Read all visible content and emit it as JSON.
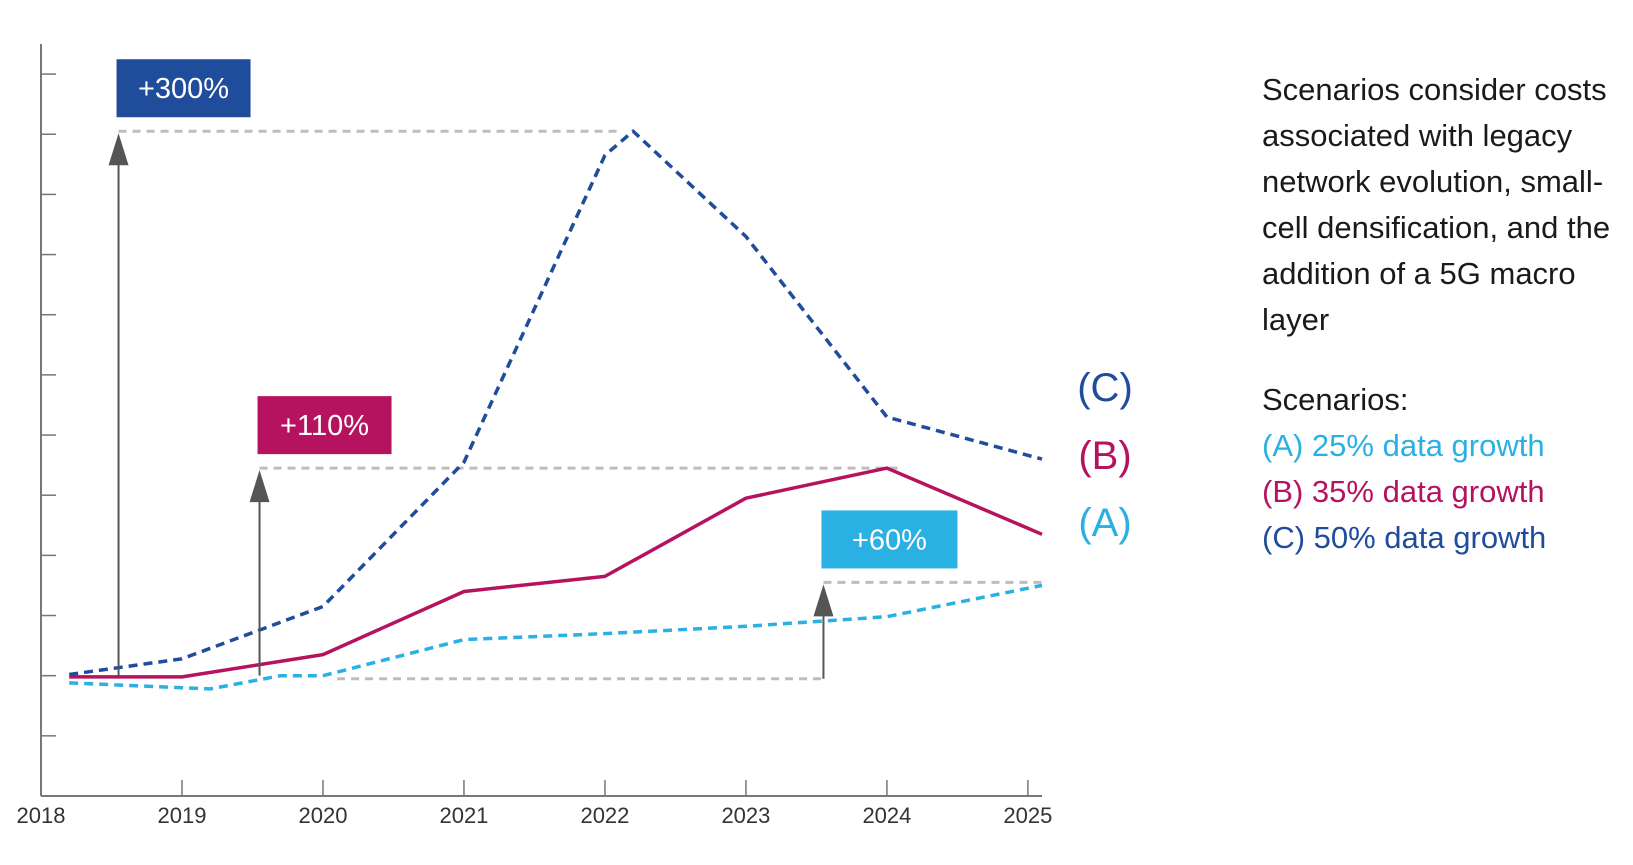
{
  "chart_data": {
    "type": "line",
    "x": [
      2018.2,
      2018.5,
      2019.0,
      2019.3,
      2019.5,
      2019.8,
      2020.0,
      2020.5,
      2021.0,
      2021.5,
      2022.0,
      2022.2,
      2022.5,
      2023.0,
      2023.5,
      2024.0,
      2024.5,
      2025.1
    ],
    "xticks": [
      "2018",
      "2019",
      "2020",
      "2021",
      "2022",
      "2023",
      "2024",
      "2025"
    ],
    "xlim": [
      2018,
      2025.1
    ],
    "ylim": [
      -2,
      10.5
    ],
    "grid": false,
    "series": [
      {
        "name": "(A)",
        "color": "#2ab0e3",
        "style": "dashed",
        "points": [
          [
            2018.2,
            -0.12
          ],
          [
            2019.0,
            -0.2
          ],
          [
            2019.2,
            -0.22
          ],
          [
            2019.7,
            0.0
          ],
          [
            2020.0,
            0.0
          ],
          [
            2021.0,
            0.6
          ],
          [
            2022.0,
            0.7
          ],
          [
            2023.0,
            0.82
          ],
          [
            2024.0,
            0.98
          ],
          [
            2025.1,
            1.5
          ]
        ]
      },
      {
        "name": "(B)",
        "color": "#b5135f",
        "style": "solid",
        "points": [
          [
            2018.2,
            -0.02
          ],
          [
            2019.0,
            -0.02
          ],
          [
            2020.0,
            0.35
          ],
          [
            2021.0,
            1.4
          ],
          [
            2022.0,
            1.65
          ],
          [
            2023.0,
            2.95
          ],
          [
            2024.0,
            3.45
          ],
          [
            2025.1,
            2.35
          ]
        ]
      },
      {
        "name": "(C)",
        "color": "#1f4c9b",
        "style": "dashed",
        "points": [
          [
            2018.2,
            0.02
          ],
          [
            2019.0,
            0.28
          ],
          [
            2020.0,
            1.15
          ],
          [
            2021.0,
            3.55
          ],
          [
            2022.0,
            8.65
          ],
          [
            2022.2,
            9.05
          ],
          [
            2023.0,
            7.3
          ],
          [
            2024.0,
            4.3
          ],
          [
            2025.1,
            3.6
          ]
        ]
      }
    ],
    "end_labels": [
      "(C)",
      "(B)",
      "(A)"
    ],
    "annotations": [
      {
        "label": "+300%",
        "x": 2018.55,
        "from": 0,
        "to": 9.05,
        "color": "#1f4c9b",
        "ref_from": 2018.55,
        "ref_to": 2022.1
      },
      {
        "label": "+110%",
        "x": 2019.55,
        "from": 0,
        "to": 3.45,
        "color": "#b5135f",
        "ref_from": 2019.55,
        "ref_to": 2024.1
      },
      {
        "label": "+60%",
        "x": 2023.55,
        "from": -0.05,
        "to": 1.55,
        "color": "#2ab0e3",
        "ref_from": 2023.55,
        "ref_to": 2025.1,
        "base_from": 2020.1
      }
    ]
  },
  "note": "Scenarios consider costs associated with legacy network evolution, small-cell densification, and the addition of a 5G macro layer",
  "legend": {
    "title": "Scenarios:",
    "items": [
      {
        "label": "(A) 25% data growth",
        "color": "#2ab0e3"
      },
      {
        "label": "(B) 35% data growth",
        "color": "#b5135f"
      },
      {
        "label": "(C) 50% data growth",
        "color": "#1f4c9b"
      }
    ]
  }
}
